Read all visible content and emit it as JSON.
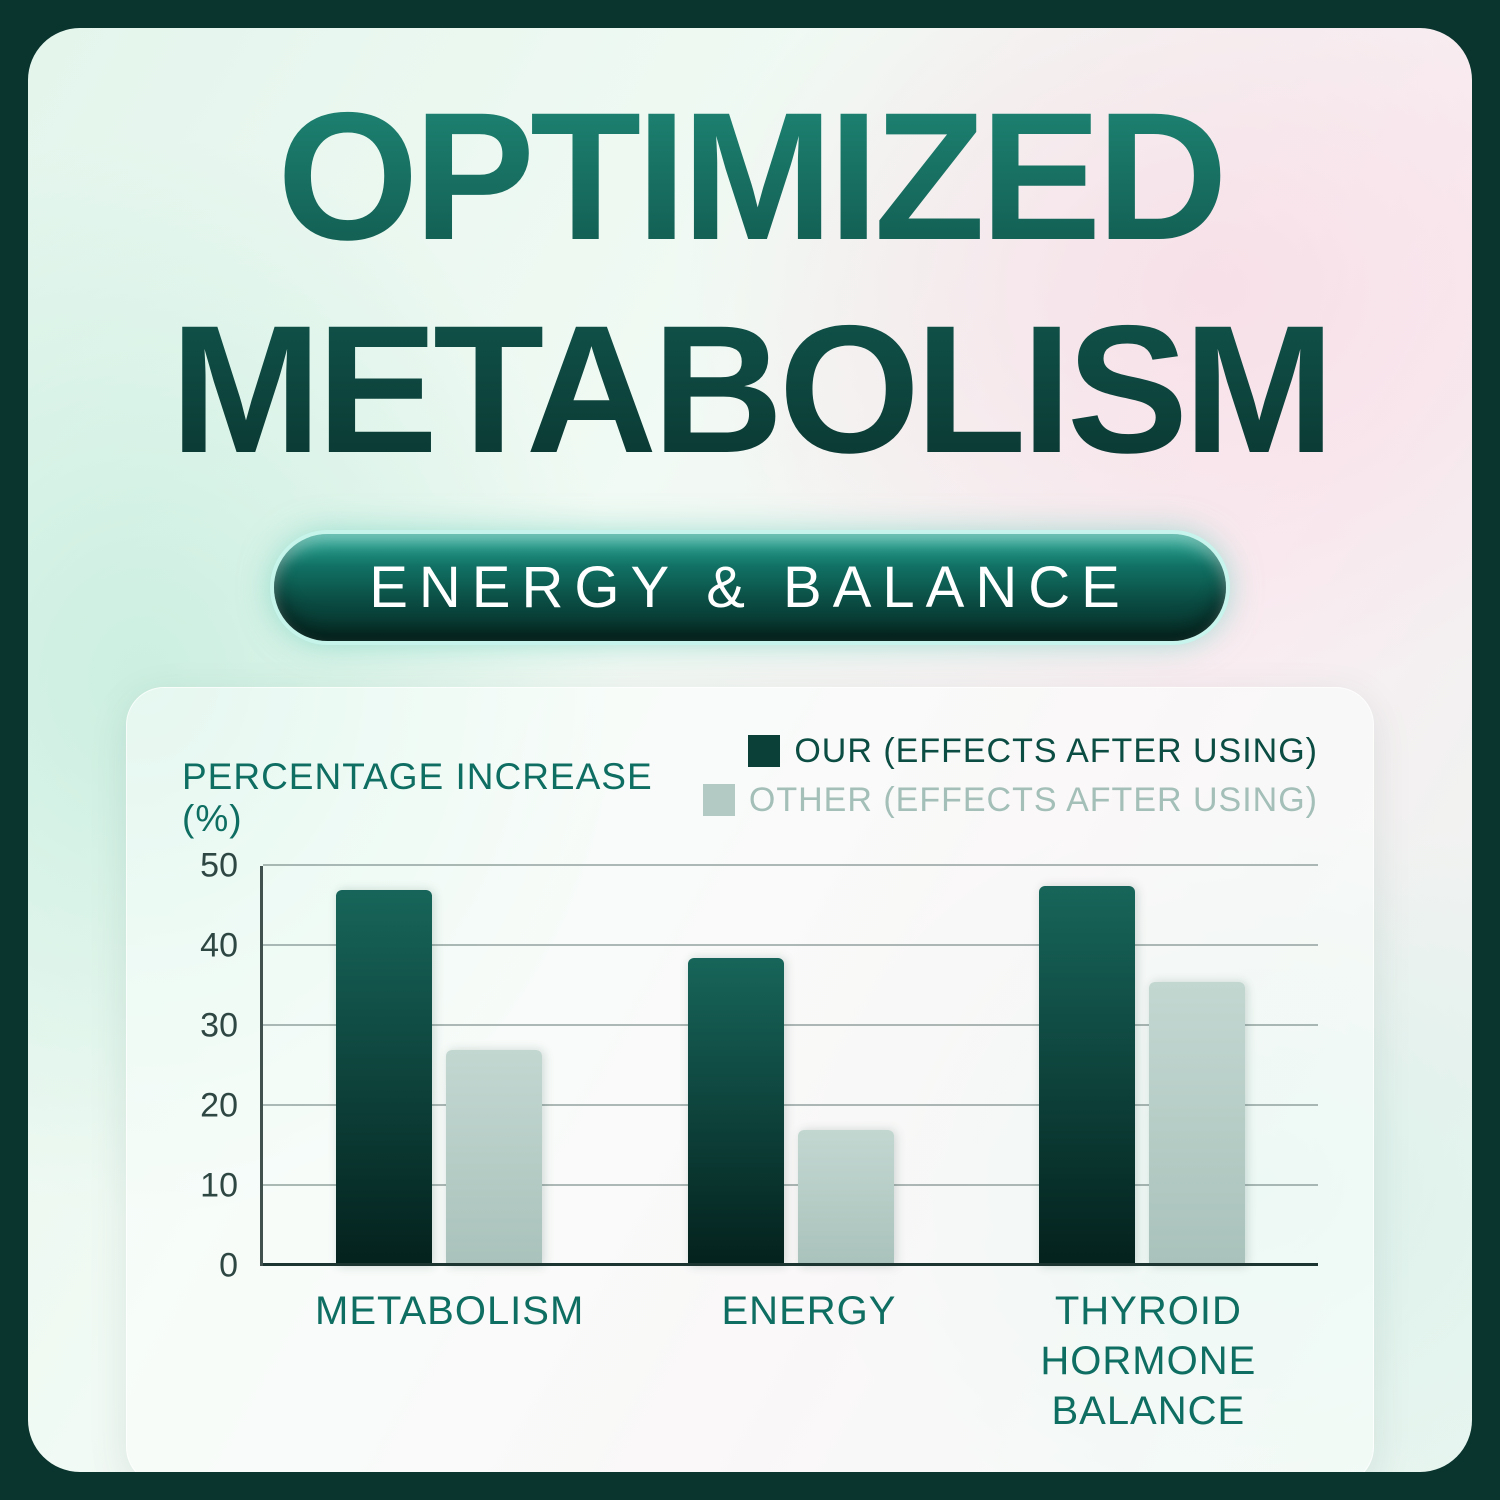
{
  "header": {
    "title_line1": "OPTIMIZED",
    "title_line2": "METABOLISM",
    "badge_label": "ENERGY & BALANCE"
  },
  "chart_data": {
    "type": "bar",
    "title": "PERCENTAGE INCREASE (%)",
    "categories": [
      "METABOLISM",
      "ENERGY",
      "THYROID HORMONE BALANCE"
    ],
    "series": [
      {
        "name": "OUR (EFFECTS AFTER USING)",
        "values": [
          47,
          38.5,
          47.5
        ],
        "color_top": "#17655a",
        "color": "#04211d",
        "swatch_color": "#0b4038"
      },
      {
        "name": "OTHER (EFFECTS AFTER USING)",
        "values": [
          27,
          17,
          35.5
        ],
        "color_top": "#c3d7d1",
        "color": "#a9c2bb",
        "swatch_color": "#b2cac3"
      }
    ],
    "xlabel": "",
    "ylabel": "PERCENTAGE INCREASE (%)",
    "ylim": [
      0,
      50
    ],
    "yticks": [
      0,
      10,
      20,
      30,
      40,
      50
    ],
    "grid": true,
    "legend_position": "top-right"
  },
  "colors": {
    "frame": "#0a342e",
    "accent_teal": "#0e6e62",
    "title_gradient_top": "#1f8a78",
    "title_gradient_bottom": "#0a342f",
    "badge_text": "#ffffff",
    "legend_our_text": "#0b4c43",
    "legend_other_text": "#a3bfb8"
  }
}
